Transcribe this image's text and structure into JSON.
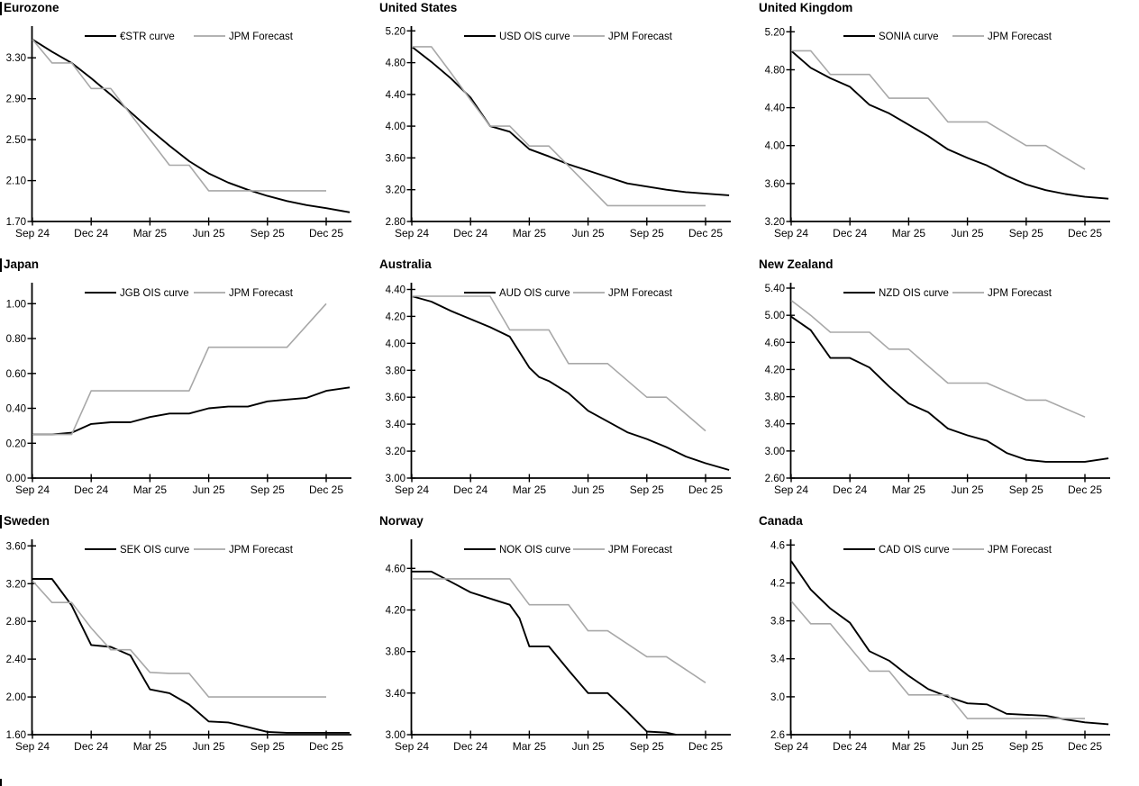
{
  "page": {
    "background": "#ffffff",
    "axis_color": "#000000",
    "forecast_gray": "#a8a8a8",
    "footer_mark": true
  },
  "chart_data": [
    {
      "id": "eurozone",
      "type": "line",
      "title": "Eurozone",
      "title_bar": true,
      "x_tick_months": [
        0,
        3,
        6,
        9,
        12,
        15
      ],
      "x_tick_labels": [
        "Sep 24",
        "Dec 24",
        "Mar 25",
        "Jun 25",
        "Sep 25",
        "Dec 25"
      ],
      "xlim": [
        0,
        16.3
      ],
      "ylim": [
        1.7,
        3.61
      ],
      "ytick_values": [
        1.7,
        2.1,
        2.5,
        2.9,
        3.3
      ],
      "ytick_labels": [
        "1.70",
        "2.10",
        "2.50",
        "2.90",
        "3.30"
      ],
      "legend_position": "top",
      "series": [
        {
          "name": "€STR curve",
          "color": "#000000",
          "width": 1.9,
          "x": [
            0,
            1,
            2,
            3,
            4,
            5,
            6,
            7,
            8,
            9,
            10,
            11,
            12,
            13,
            14,
            15,
            16.2
          ],
          "y": [
            3.48,
            3.36,
            3.25,
            3.1,
            2.94,
            2.77,
            2.6,
            2.44,
            2.29,
            2.17,
            2.08,
            2.01,
            1.95,
            1.9,
            1.86,
            1.83,
            1.79
          ]
        },
        {
          "name": "JPM Forecast",
          "color": "#a8a8a8",
          "width": 1.6,
          "x": [
            0,
            1,
            2,
            3,
            4,
            5,
            6,
            7,
            8,
            9,
            15
          ],
          "y": [
            3.48,
            3.25,
            3.25,
            3.0,
            3.0,
            2.75,
            2.5,
            2.25,
            2.25,
            2.0,
            2.0
          ]
        }
      ]
    },
    {
      "id": "united-states",
      "type": "line",
      "title": "United States",
      "title_bar": false,
      "x_tick_months": [
        0,
        3,
        6,
        9,
        12,
        15
      ],
      "x_tick_labels": [
        "Sep 24",
        "Dec 24",
        "Mar 25",
        "Jun 25",
        "Sep 25",
        "Dec 25"
      ],
      "xlim": [
        0,
        16.3
      ],
      "ylim": [
        2.8,
        5.26
      ],
      "ytick_values": [
        2.8,
        3.2,
        3.6,
        4.0,
        4.4,
        4.8,
        5.2
      ],
      "ytick_labels": [
        "2.80",
        "3.20",
        "3.60",
        "4.00",
        "4.40",
        "4.80",
        "5.20"
      ],
      "legend_position": "top",
      "series": [
        {
          "name": "USD OIS curve",
          "color": "#000000",
          "width": 1.9,
          "x": [
            0,
            1,
            2,
            3,
            4,
            5,
            6,
            7,
            8,
            9,
            10,
            11,
            12,
            13,
            14,
            15,
            16.2
          ],
          "y": [
            5.0,
            4.81,
            4.6,
            4.36,
            4.0,
            3.93,
            3.71,
            3.62,
            3.52,
            3.44,
            3.36,
            3.28,
            3.24,
            3.2,
            3.17,
            3.15,
            3.13
          ]
        },
        {
          "name": "JPM Forecast",
          "color": "#a8a8a8",
          "width": 1.6,
          "x": [
            0,
            1,
            2,
            3,
            4,
            5,
            6,
            7,
            8,
            9,
            10,
            15
          ],
          "y": [
            5.0,
            5.0,
            4.67,
            4.33,
            4.0,
            4.0,
            3.75,
            3.75,
            3.5,
            3.25,
            3.0,
            3.0
          ]
        }
      ]
    },
    {
      "id": "united-kingdom",
      "type": "line",
      "title": "United Kingdom",
      "title_bar": false,
      "x_tick_months": [
        0,
        3,
        6,
        9,
        12,
        15
      ],
      "x_tick_labels": [
        "Sep 24",
        "Dec 24",
        "Mar 25",
        "Jun 25",
        "Sep 25",
        "Dec 25"
      ],
      "xlim": [
        0,
        16.3
      ],
      "ylim": [
        3.2,
        5.26
      ],
      "ytick_values": [
        3.2,
        3.6,
        4.0,
        4.4,
        4.8,
        5.2
      ],
      "ytick_labels": [
        "3.20",
        "3.60",
        "4.00",
        "4.40",
        "4.80",
        "5.20"
      ],
      "legend_position": "top",
      "series": [
        {
          "name": "SONIA curve",
          "color": "#000000",
          "width": 1.9,
          "x": [
            0,
            1,
            2,
            3,
            4,
            5,
            6,
            7,
            8,
            9,
            10,
            11,
            12,
            13,
            14,
            15,
            16.2
          ],
          "y": [
            5.0,
            4.82,
            4.71,
            4.62,
            4.43,
            4.34,
            4.22,
            4.1,
            3.96,
            3.87,
            3.79,
            3.68,
            3.59,
            3.53,
            3.49,
            3.46,
            3.44
          ]
        },
        {
          "name": "JPM Forecast",
          "color": "#a8a8a8",
          "width": 1.6,
          "x": [
            0,
            1,
            2,
            4,
            5,
            7,
            8,
            10,
            12,
            13,
            15
          ],
          "y": [
            5.0,
            5.0,
            4.75,
            4.75,
            4.5,
            4.5,
            4.25,
            4.25,
            4.0,
            4.0,
            3.75
          ]
        }
      ]
    },
    {
      "id": "japan",
      "type": "line",
      "title": "Japan",
      "title_bar": true,
      "x_tick_months": [
        0,
        3,
        6,
        9,
        12,
        15
      ],
      "x_tick_labels": [
        "Sep 24",
        "Dec 24",
        "Mar 25",
        "Jun 25",
        "Sep 25",
        "Dec 25"
      ],
      "xlim": [
        0,
        16.3
      ],
      "ylim": [
        0.0,
        1.12
      ],
      "ytick_values": [
        0.0,
        0.2,
        0.4,
        0.6,
        0.8,
        1.0
      ],
      "ytick_labels": [
        "0.00",
        "0.20",
        "0.40",
        "0.60",
        "0.80",
        "1.00"
      ],
      "legend_position": "top",
      "series": [
        {
          "name": "JGB OIS curve",
          "color": "#000000",
          "width": 1.9,
          "x": [
            0,
            1,
            2,
            3,
            4,
            5,
            6,
            7,
            8,
            9,
            10,
            11,
            12,
            13,
            14,
            15,
            16.2
          ],
          "y": [
            0.25,
            0.25,
            0.26,
            0.31,
            0.32,
            0.32,
            0.35,
            0.37,
            0.37,
            0.4,
            0.41,
            0.41,
            0.44,
            0.45,
            0.46,
            0.5,
            0.52
          ]
        },
        {
          "name": "JPM Forecast",
          "color": "#a8a8a8",
          "width": 1.6,
          "x": [
            0,
            2,
            3,
            8,
            9,
            13,
            15
          ],
          "y": [
            0.25,
            0.25,
            0.5,
            0.5,
            0.75,
            0.75,
            1.0
          ]
        }
      ]
    },
    {
      "id": "australia",
      "type": "line",
      "title": "Australia",
      "title_bar": false,
      "x_tick_months": [
        0,
        3,
        6,
        9,
        12,
        15
      ],
      "x_tick_labels": [
        "Sep 24",
        "Dec 24",
        "Mar 25",
        "Jun 25",
        "Sep 25",
        "Dec 25"
      ],
      "xlim": [
        0,
        16.3
      ],
      "ylim": [
        3.0,
        4.45
      ],
      "ytick_values": [
        3.0,
        3.2,
        3.4,
        3.6,
        3.8,
        4.0,
        4.2,
        4.4
      ],
      "ytick_labels": [
        "3.00",
        "3.20",
        "3.40",
        "3.60",
        "3.80",
        "4.00",
        "4.20",
        "4.40"
      ],
      "legend_position": "top",
      "series": [
        {
          "name": "AUD OIS curve",
          "color": "#000000",
          "width": 1.9,
          "x": [
            0,
            1,
            2,
            3,
            4,
            5,
            6,
            6.5,
            7,
            8,
            9,
            10,
            11,
            12,
            13,
            14,
            15,
            16.2
          ],
          "y": [
            4.35,
            4.31,
            4.24,
            4.18,
            4.12,
            4.05,
            3.82,
            3.75,
            3.72,
            3.63,
            3.5,
            3.42,
            3.34,
            3.29,
            3.23,
            3.16,
            3.11,
            3.06
          ]
        },
        {
          "name": "JPM Forecast",
          "color": "#a8a8a8",
          "width": 1.6,
          "x": [
            0,
            4,
            5,
            7,
            8,
            10,
            12,
            13,
            15
          ],
          "y": [
            4.35,
            4.35,
            4.1,
            4.1,
            3.85,
            3.85,
            3.6,
            3.6,
            3.35
          ]
        }
      ]
    },
    {
      "id": "new-zealand",
      "type": "line",
      "title": "New Zealand",
      "title_bar": false,
      "x_tick_months": [
        0,
        3,
        6,
        9,
        12,
        15
      ],
      "x_tick_labels": [
        "Sep 24",
        "Dec 24",
        "Mar 25",
        "Jun 25",
        "Sep 25",
        "Dec 25"
      ],
      "xlim": [
        0,
        16.3
      ],
      "ylim": [
        2.6,
        5.48
      ],
      "ytick_values": [
        2.6,
        3.0,
        3.4,
        3.8,
        4.2,
        4.6,
        5.0,
        5.4
      ],
      "ytick_labels": [
        "2.60",
        "3.00",
        "3.40",
        "3.80",
        "4.20",
        "4.60",
        "5.00",
        "5.40"
      ],
      "legend_position": "top",
      "series": [
        {
          "name": "NZD OIS curve",
          "color": "#000000",
          "width": 1.9,
          "x": [
            0,
            1,
            2,
            3,
            4,
            5,
            6,
            7,
            8,
            9,
            10,
            11,
            12,
            13,
            14,
            15,
            16.2
          ],
          "y": [
            4.98,
            4.78,
            4.37,
            4.37,
            4.23,
            3.95,
            3.7,
            3.57,
            3.33,
            3.23,
            3.15,
            2.97,
            2.87,
            2.84,
            2.84,
            2.84,
            2.89
          ]
        },
        {
          "name": "JPM Forecast",
          "color": "#a8a8a8",
          "width": 1.6,
          "x": [
            0,
            1,
            2,
            4,
            5,
            6,
            8,
            10,
            12,
            13,
            15
          ],
          "y": [
            5.22,
            5.0,
            4.75,
            4.75,
            4.5,
            4.5,
            4.0,
            4.0,
            3.75,
            3.75,
            3.5
          ]
        }
      ]
    },
    {
      "id": "sweden",
      "type": "line",
      "title": "Sweden",
      "title_bar": true,
      "x_tick_months": [
        0,
        3,
        6,
        9,
        12,
        15
      ],
      "x_tick_labels": [
        "Sep 24",
        "Dec 24",
        "Mar 25",
        "Jun 25",
        "Sep 25",
        "Dec 25"
      ],
      "xlim": [
        0,
        16.3
      ],
      "ylim": [
        1.6,
        3.67
      ],
      "ytick_values": [
        1.6,
        2.0,
        2.4,
        2.8,
        3.2,
        3.6
      ],
      "ytick_labels": [
        "1.60",
        "2.00",
        "2.40",
        "2.80",
        "3.20",
        "3.60"
      ],
      "legend_position": "top",
      "series": [
        {
          "name": "SEK OIS curve",
          "color": "#000000",
          "width": 1.9,
          "x": [
            0,
            1,
            2,
            3,
            4,
            5,
            6,
            7,
            8,
            9,
            10,
            11,
            12,
            13,
            14,
            15,
            16.2
          ],
          "y": [
            3.25,
            3.25,
            2.97,
            2.55,
            2.53,
            2.44,
            2.08,
            2.04,
            1.92,
            1.74,
            1.73,
            1.68,
            1.63,
            1.62,
            1.62,
            1.62,
            1.62
          ]
        },
        {
          "name": "JPM Forecast",
          "color": "#a8a8a8",
          "width": 1.6,
          "x": [
            0,
            1,
            2,
            3,
            4,
            5,
            6,
            7,
            8,
            9,
            15
          ],
          "y": [
            3.23,
            3.0,
            3.0,
            2.73,
            2.5,
            2.5,
            2.26,
            2.25,
            2.25,
            2.0,
            2.0
          ]
        }
      ]
    },
    {
      "id": "norway",
      "type": "line",
      "title": "Norway",
      "title_bar": false,
      "x_tick_months": [
        0,
        3,
        6,
        9,
        12,
        15
      ],
      "x_tick_labels": [
        "Sep 24",
        "Dec 24",
        "Mar 25",
        "Jun 25",
        "Sep 25",
        "Dec 25"
      ],
      "xlim": [
        0,
        16.3
      ],
      "ylim": [
        3.0,
        4.88
      ],
      "ytick_values": [
        3.0,
        3.4,
        3.8,
        4.2,
        4.6
      ],
      "ytick_labels": [
        "3.00",
        "3.40",
        "3.80",
        "4.20",
        "4.60"
      ],
      "legend_position": "top",
      "series": [
        {
          "name": "NOK OIS curve",
          "color": "#000000",
          "width": 1.9,
          "x": [
            0,
            1,
            2,
            3,
            4,
            5,
            5.5,
            6,
            7,
            8,
            9,
            10,
            11,
            12,
            13,
            13.5
          ],
          "y": [
            4.57,
            4.57,
            4.47,
            4.37,
            4.31,
            4.25,
            4.12,
            3.85,
            3.85,
            3.62,
            3.4,
            3.4,
            3.22,
            3.03,
            3.02,
            3.0
          ]
        },
        {
          "name": "JPM Forecast",
          "color": "#a8a8a8",
          "width": 1.6,
          "x": [
            0,
            5,
            6,
            8,
            9,
            10,
            12,
            13,
            15
          ],
          "y": [
            4.5,
            4.5,
            4.25,
            4.25,
            4.0,
            4.0,
            3.75,
            3.75,
            3.5
          ]
        }
      ]
    },
    {
      "id": "canada",
      "type": "line",
      "title": "Canada",
      "title_bar": false,
      "x_tick_months": [
        0,
        3,
        6,
        9,
        12,
        15
      ],
      "x_tick_labels": [
        "Sep 24",
        "Dec 24",
        "Mar 25",
        "Jun 25",
        "Sep 25",
        "Dec 25"
      ],
      "xlim": [
        0,
        16.3
      ],
      "ylim": [
        2.6,
        4.66
      ],
      "ytick_values": [
        2.6,
        3.0,
        3.4,
        3.8,
        4.2,
        4.6
      ],
      "ytick_labels": [
        "2.6",
        "3.0",
        "3.4",
        "3.8",
        "4.2",
        "4.6"
      ],
      "legend_position": "top",
      "series": [
        {
          "name": "CAD OIS curve",
          "color": "#000000",
          "width": 1.9,
          "x": [
            0,
            1,
            2,
            3,
            4,
            5,
            6,
            7,
            8,
            9,
            10,
            11,
            12,
            13,
            14,
            15,
            16.2
          ],
          "y": [
            4.43,
            4.13,
            3.93,
            3.78,
            3.48,
            3.38,
            3.22,
            3.08,
            3.0,
            2.93,
            2.92,
            2.82,
            2.81,
            2.8,
            2.76,
            2.73,
            2.71
          ]
        },
        {
          "name": "JPM Forecast",
          "color": "#a8a8a8",
          "width": 1.6,
          "x": [
            0,
            1,
            2,
            3,
            4,
            5,
            6,
            8,
            9,
            15
          ],
          "y": [
            4.01,
            3.77,
            3.77,
            3.52,
            3.27,
            3.27,
            3.02,
            3.02,
            2.77,
            2.77
          ]
        }
      ]
    }
  ]
}
